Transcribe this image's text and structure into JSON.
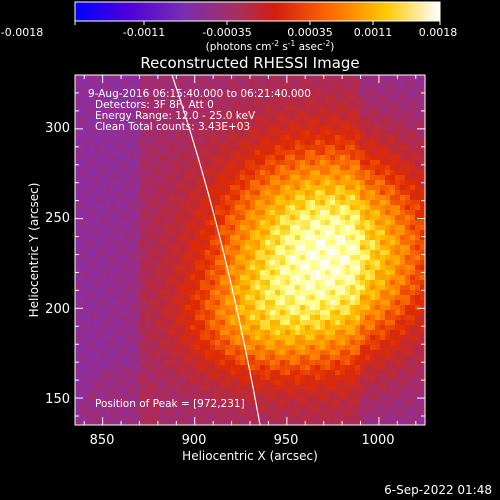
{
  "colorbar": {
    "ticks": [
      "-0.0018",
      "-0.0011",
      "-0.00035",
      "0.00035",
      "0.0011",
      "0.0018"
    ],
    "units_pre": "(photons cm",
    "units_exp1": "-2",
    "units_mid": " s",
    "units_exp2": "-1",
    "units_mid2": " asec",
    "units_exp3": "-2",
    "units_post": ")"
  },
  "colors": {
    "colormap": [
      "#0000ff",
      "#5a00d2",
      "#8a2fa8",
      "#b22a4a",
      "#e02a00",
      "#ff7a00",
      "#ffc000",
      "#ffff80",
      "#ffffff"
    ]
  },
  "chart_data": {
    "type": "heatmap",
    "title": "Reconstructed RHESSI Image",
    "xlabel": "Heliocentric X (arcsec)",
    "ylabel": "Heliocentric Y (arcsec)",
    "xlim": [
      835,
      1025
    ],
    "ylim": [
      135,
      330
    ],
    "x_ticks": [
      850,
      900,
      950,
      1000
    ],
    "y_ticks": [
      150,
      200,
      250,
      300
    ],
    "x_tick_labels": [
      "850",
      "900",
      "950",
      "1000"
    ],
    "y_tick_labels": [
      "150",
      "200",
      "250",
      "300"
    ],
    "color_range": [
      -0.0018,
      0.0018
    ],
    "peak": [
      972,
      231
    ],
    "annotations": {
      "line1": "9-Aug-2016 06:15:40.000 to 06:21:40.000",
      "line2": "Detectors: 3F 8F, Att 0",
      "line3": "Energy Range: 12.0 - 25.0 keV",
      "line4": "Clean     Total counts: 3.43E+03",
      "peak_label": "Position of Peak = [972,231]"
    },
    "footer_date": "6-Sep-2022 01:48"
  }
}
